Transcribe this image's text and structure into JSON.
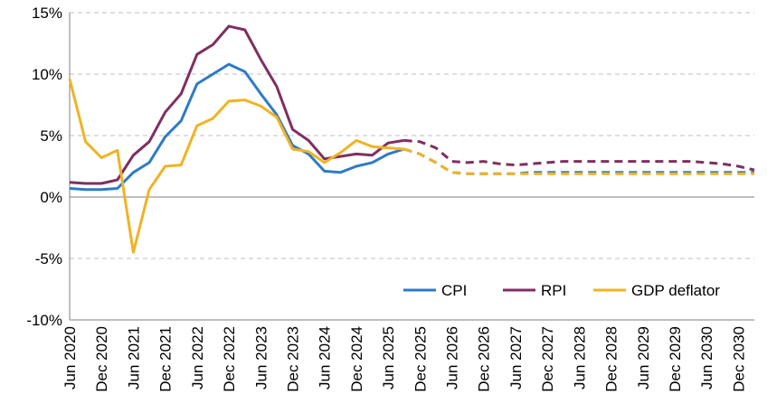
{
  "chart_data": {
    "type": "line",
    "title": "",
    "xlabel": "",
    "ylabel": "",
    "ylim": [
      -10,
      15
    ],
    "yticks": [
      "15%",
      "10%",
      "5%",
      "0%",
      "-5%",
      "-10%"
    ],
    "ytick_values": [
      15,
      10,
      5,
      0,
      -5,
      -10
    ],
    "grid": "horizontal dashed",
    "legend_position": "bottom-right",
    "x_labels": [
      "Jun 2020",
      "Dec 2020",
      "Jun 2021",
      "Dec 2021",
      "Jun 2022",
      "Dec 2022",
      "Jun 2023",
      "Dec 2023",
      "Jun 2024",
      "Dec 2024",
      "Jun 2025",
      "Dec 2025",
      "Jun 2026",
      "Dec 2026",
      "Jun 2027",
      "Dec 2027",
      "Jun 2028",
      "Dec 2028",
      "Jun 2029",
      "Dec 2029",
      "Jun 2030",
      "Dec 2030"
    ],
    "x": [
      "2020 Q2",
      "2020 Q3",
      "2020 Q4",
      "2021 Q1",
      "2021 Q2",
      "2021 Q3",
      "2021 Q4",
      "2022 Q1",
      "2022 Q2",
      "2022 Q3",
      "2022 Q4",
      "2023 Q1",
      "2023 Q2",
      "2023 Q3",
      "2023 Q4",
      "2024 Q1",
      "2024 Q2",
      "2024 Q3",
      "2024 Q4",
      "2025 Q1",
      "2025 Q2",
      "2025 Q3",
      "2025 Q4",
      "2026 Q1",
      "2026 Q2",
      "2026 Q3",
      "2026 Q4",
      "2027 Q1",
      "2027 Q2",
      "2027 Q3",
      "2027 Q4",
      "2028 Q1",
      "2028 Q2",
      "2028 Q3",
      "2028 Q4",
      "2029 Q1",
      "2029 Q2",
      "2029 Q3",
      "2029 Q4",
      "2030 Q1",
      "2030 Q2",
      "2030 Q3",
      "2030 Q4",
      "2031 Q1"
    ],
    "forecast_start": "2025 Q3",
    "series": [
      {
        "name": "CPI",
        "color": "#2e7bc4",
        "values": [
          0.7,
          0.6,
          0.6,
          0.7,
          2.0,
          2.8,
          4.9,
          6.2,
          9.2,
          10.0,
          10.8,
          10.2,
          8.4,
          6.7,
          4.2,
          3.5,
          2.1,
          2.0,
          2.5,
          2.8,
          3.5,
          3.9,
          3.5,
          2.8,
          2.0,
          1.9,
          1.9,
          1.9,
          1.9,
          2.0,
          2.0,
          2.0,
          2.0,
          2.0,
          2.0,
          2.0,
          2.0,
          2.0,
          2.0,
          2.0,
          2.0,
          2.0,
          2.0,
          2.0
        ]
      },
      {
        "name": "RPI",
        "color": "#7f2f5f",
        "values": [
          1.2,
          1.1,
          1.1,
          1.4,
          3.4,
          4.5,
          6.9,
          8.4,
          11.6,
          12.4,
          13.9,
          13.6,
          11.2,
          9.0,
          5.5,
          4.6,
          3.1,
          3.3,
          3.5,
          3.4,
          4.4,
          4.6,
          4.5,
          4.0,
          2.9,
          2.8,
          2.9,
          2.7,
          2.6,
          2.7,
          2.8,
          2.9,
          2.9,
          2.9,
          2.9,
          2.9,
          2.9,
          2.9,
          2.9,
          2.9,
          2.8,
          2.7,
          2.5,
          2.2
        ]
      },
      {
        "name": "GDP deflator",
        "color": "#f0b323",
        "values": [
          9.6,
          4.5,
          3.2,
          3.8,
          -4.5,
          0.6,
          2.5,
          2.6,
          5.8,
          6.4,
          7.8,
          7.9,
          7.4,
          6.5,
          3.9,
          3.7,
          2.8,
          3.6,
          4.6,
          4.1,
          4.0,
          3.9,
          3.5,
          2.8,
          2.0,
          1.9,
          1.9,
          1.9,
          1.9,
          1.9,
          1.9,
          1.9,
          1.9,
          1.9,
          1.9,
          1.9,
          1.9,
          1.9,
          1.9,
          1.9,
          1.9,
          1.9,
          1.9,
          1.9
        ]
      }
    ]
  }
}
